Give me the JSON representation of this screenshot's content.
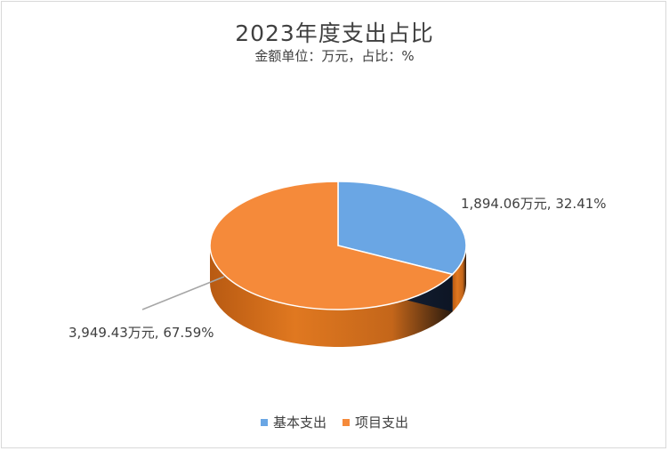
{
  "chart_data": {
    "type": "pie",
    "title": "2023年度支出占比",
    "subtitle": "金额单位：万元，占比：%",
    "slices": [
      {
        "name": "基本支出",
        "value": 1894.06,
        "percent": 32.41,
        "label": "1,894.06万元, 32.41%",
        "color": "#6aa6e4"
      },
      {
        "name": "项目支出",
        "value": 3949.43,
        "percent": 67.59,
        "label": "3,949.43万元, 67.59%",
        "color": "#f58a3a"
      }
    ],
    "legend_position": "bottom"
  },
  "legend": {
    "items": [
      {
        "label": "基本支出",
        "color": "#6aa6e4"
      },
      {
        "label": "项目支出",
        "color": "#f58a3a"
      }
    ]
  }
}
